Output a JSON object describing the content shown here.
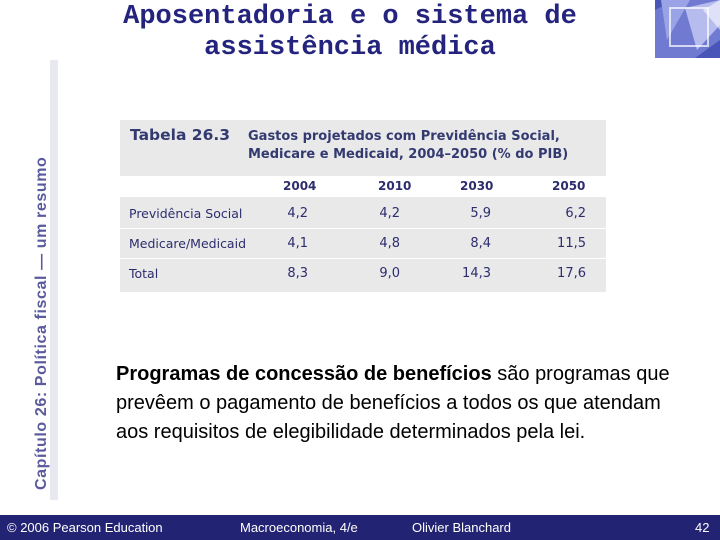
{
  "side_title": "Capítulo 26: Política fiscal — um resumo",
  "title_line1": "Aposentadoria e o sistema de",
  "title_line2": "assistência médica",
  "table": {
    "label": "Tabela 26.3",
    "caption_line1": "Gastos projetados com Previdência Social,",
    "caption_line2": "Medicare e Medicaid, 2004–2050 (% do PIB)",
    "columns": [
      "2004",
      "2010",
      "2030",
      "2050"
    ],
    "rows": [
      {
        "label": "Previdência Social",
        "values": [
          "4,2",
          "4,2",
          "5,9",
          "6,2"
        ]
      },
      {
        "label": "Medicare/Medicaid",
        "values": [
          "4,1",
          "4,8",
          "8,4",
          "11,5"
        ]
      },
      {
        "label": "Total",
        "values": [
          "8,3",
          "9,0",
          "14,3",
          "17,6"
        ]
      }
    ]
  },
  "body_text": {
    "bold_part": "Programas de concessão de benefícios",
    "rest": " são programas que prevêem o pagamento de benefícios a todos os que atendam aos requisitos de elegibilidade determinados pela lei."
  },
  "footer": {
    "copyright": "© 2006 Pearson Education",
    "book": "Macroeconomia, 4/e",
    "author": "Olivier Blanchard",
    "page": "42"
  },
  "colors": {
    "accent": "#24247e",
    "footer_bg": "#232374",
    "table_bg": "#e9e9e9"
  }
}
